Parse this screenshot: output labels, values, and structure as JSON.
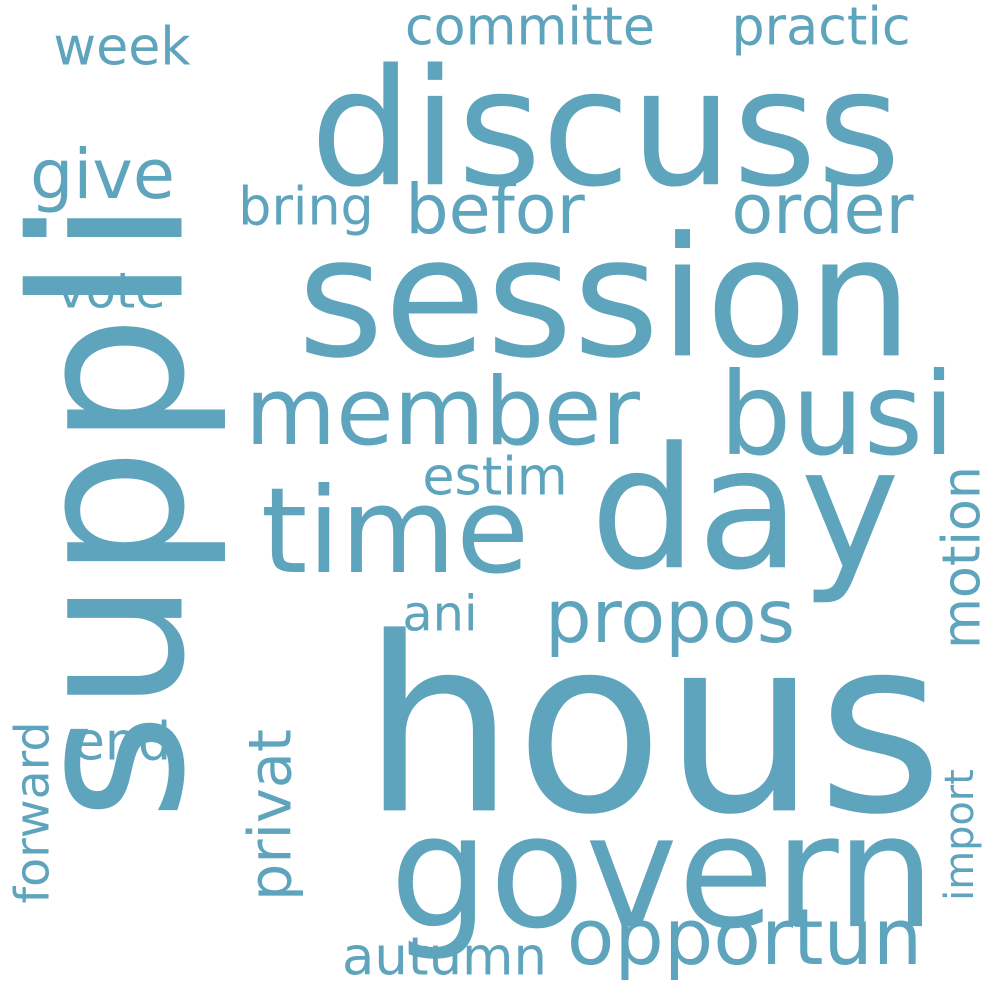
{
  "colors": {
    "word": "#5ea4bd",
    "background": "#ffffff"
  },
  "words": [
    {
      "id": "suppli",
      "text": "suppli"
    },
    {
      "id": "hous",
      "text": "hous"
    },
    {
      "id": "session",
      "text": "session"
    },
    {
      "id": "discuss",
      "text": "discuss"
    },
    {
      "id": "day",
      "text": "day"
    },
    {
      "id": "govern",
      "text": "govern"
    },
    {
      "id": "time",
      "text": "time"
    },
    {
      "id": "member",
      "text": "member"
    },
    {
      "id": "busi",
      "text": "busi"
    },
    {
      "id": "opportun",
      "text": "opportun"
    },
    {
      "id": "propos",
      "text": "propos"
    },
    {
      "id": "order",
      "text": "order"
    },
    {
      "id": "befor",
      "text": "befor"
    },
    {
      "id": "practic",
      "text": "practic"
    },
    {
      "id": "committe",
      "text": "committe"
    },
    {
      "id": "motion",
      "text": "motion"
    },
    {
      "id": "privat",
      "text": "privat"
    },
    {
      "id": "give",
      "text": "give"
    },
    {
      "id": "week",
      "text": "week"
    },
    {
      "id": "bring",
      "text": "bring"
    },
    {
      "id": "vote",
      "text": "vote"
    },
    {
      "id": "estim",
      "text": "estim"
    },
    {
      "id": "ani",
      "text": "ani"
    },
    {
      "id": "end",
      "text": "end"
    },
    {
      "id": "forward",
      "text": "forward"
    },
    {
      "id": "autumn",
      "text": "autumn"
    },
    {
      "id": "import",
      "text": "import"
    }
  ]
}
